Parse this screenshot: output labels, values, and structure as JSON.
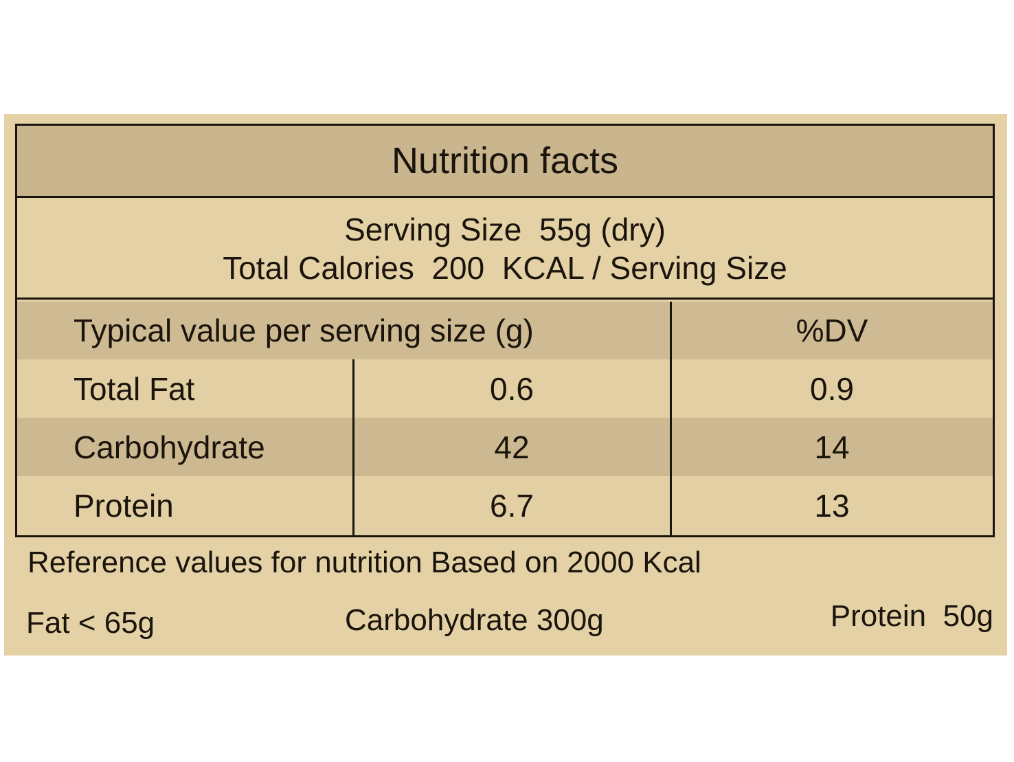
{
  "title": "Nutrition facts",
  "serving_size": "Serving Size  55g (dry)",
  "total_calories": "Total Calories  200  KCAL / Serving Size",
  "table": {
    "headers": [
      "Typical value per serving size (g)",
      "%DV"
    ],
    "rows": [
      {
        "name": "Total Fat",
        "value": "0.6",
        "dv": "0.9"
      },
      {
        "name": "Carbohydrate",
        "value": "42",
        "dv": "14"
      },
      {
        "name": "Protein",
        "value": "6.7",
        "dv": "13"
      }
    ]
  },
  "footer": {
    "reference": "Reference values for nutrition Based on 2000 Kcal",
    "fat": "Fat < 65g",
    "carbohydrate": "Carbohydrate 300g",
    "protein": "Protein  50g"
  },
  "colors": {
    "paper": "#e4d2a6",
    "shade": "#c9b68f",
    "ink": "#1a140c"
  }
}
